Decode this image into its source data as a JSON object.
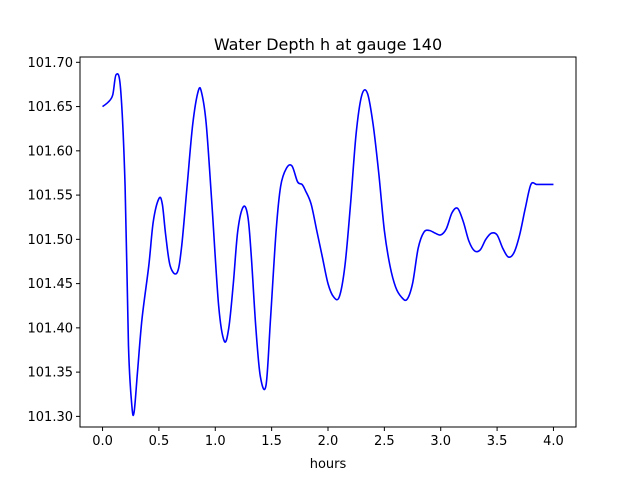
{
  "chart_data": {
    "type": "line",
    "title": "Water Depth h at gauge 140",
    "xlabel": "hours",
    "ylabel": "",
    "xlim": [
      -0.2,
      4.2
    ],
    "ylim": [
      101.288,
      101.706
    ],
    "grid": false,
    "xticks": [
      0.0,
      0.5,
      1.0,
      1.5,
      2.0,
      2.5,
      3.0,
      3.5,
      4.0
    ],
    "xtick_labels": [
      "0.0",
      "0.5",
      "1.0",
      "1.5",
      "2.0",
      "2.5",
      "3.0",
      "3.5",
      "4.0"
    ],
    "yticks": [
      101.3,
      101.35,
      101.4,
      101.45,
      101.5,
      101.55,
      101.6,
      101.65,
      101.7
    ],
    "ytick_labels": [
      "101.30",
      "101.35",
      "101.40",
      "101.45",
      "101.50",
      "101.55",
      "101.60",
      "101.65",
      "101.70"
    ],
    "series": [
      {
        "color": "#0000ff",
        "x": [
          0.0,
          0.05,
          0.09,
          0.12,
          0.16,
          0.2,
          0.23,
          0.26,
          0.28,
          0.31,
          0.35,
          0.41,
          0.45,
          0.5,
          0.53,
          0.56,
          0.6,
          0.66,
          0.7,
          0.75,
          0.8,
          0.85,
          0.88,
          0.92,
          0.97,
          1.03,
          1.08,
          1.12,
          1.16,
          1.2,
          1.25,
          1.29,
          1.32,
          1.36,
          1.4,
          1.45,
          1.49,
          1.54,
          1.58,
          1.63,
          1.68,
          1.73,
          1.77,
          1.8,
          1.85,
          1.9,
          1.95,
          2.0,
          2.05,
          2.1,
          2.15,
          2.2,
          2.25,
          2.3,
          2.35,
          2.4,
          2.45,
          2.5,
          2.55,
          2.6,
          2.65,
          2.7,
          2.75,
          2.8,
          2.85,
          2.9,
          2.95,
          3.0,
          3.05,
          3.1,
          3.15,
          3.2,
          3.25,
          3.3,
          3.35,
          3.4,
          3.45,
          3.5,
          3.55,
          3.6,
          3.65,
          3.7,
          3.75,
          3.8,
          3.85,
          3.9,
          3.95,
          4.0
        ],
        "y": [
          101.65,
          101.655,
          101.663,
          101.686,
          101.67,
          101.56,
          101.38,
          101.312,
          101.305,
          101.35,
          101.41,
          101.47,
          101.52,
          101.546,
          101.54,
          101.505,
          101.47,
          101.462,
          101.49,
          101.56,
          101.63,
          101.668,
          101.665,
          101.63,
          101.54,
          101.425,
          101.385,
          101.4,
          101.45,
          101.51,
          101.537,
          101.525,
          101.48,
          101.4,
          101.345,
          101.335,
          101.41,
          101.51,
          101.56,
          101.58,
          101.583,
          101.565,
          101.562,
          101.555,
          101.54,
          101.51,
          101.48,
          101.45,
          101.435,
          101.435,
          101.47,
          101.54,
          101.62,
          101.663,
          101.665,
          101.63,
          101.575,
          101.51,
          101.47,
          101.446,
          101.435,
          101.432,
          101.45,
          101.49,
          101.508,
          101.51,
          101.507,
          101.505,
          101.512,
          101.53,
          101.535,
          101.52,
          101.498,
          101.487,
          101.488,
          101.5,
          101.507,
          101.505,
          101.49,
          101.48,
          101.485,
          101.505,
          101.535,
          101.562,
          101.562,
          101.562,
          101.562,
          101.562
        ]
      }
    ]
  }
}
